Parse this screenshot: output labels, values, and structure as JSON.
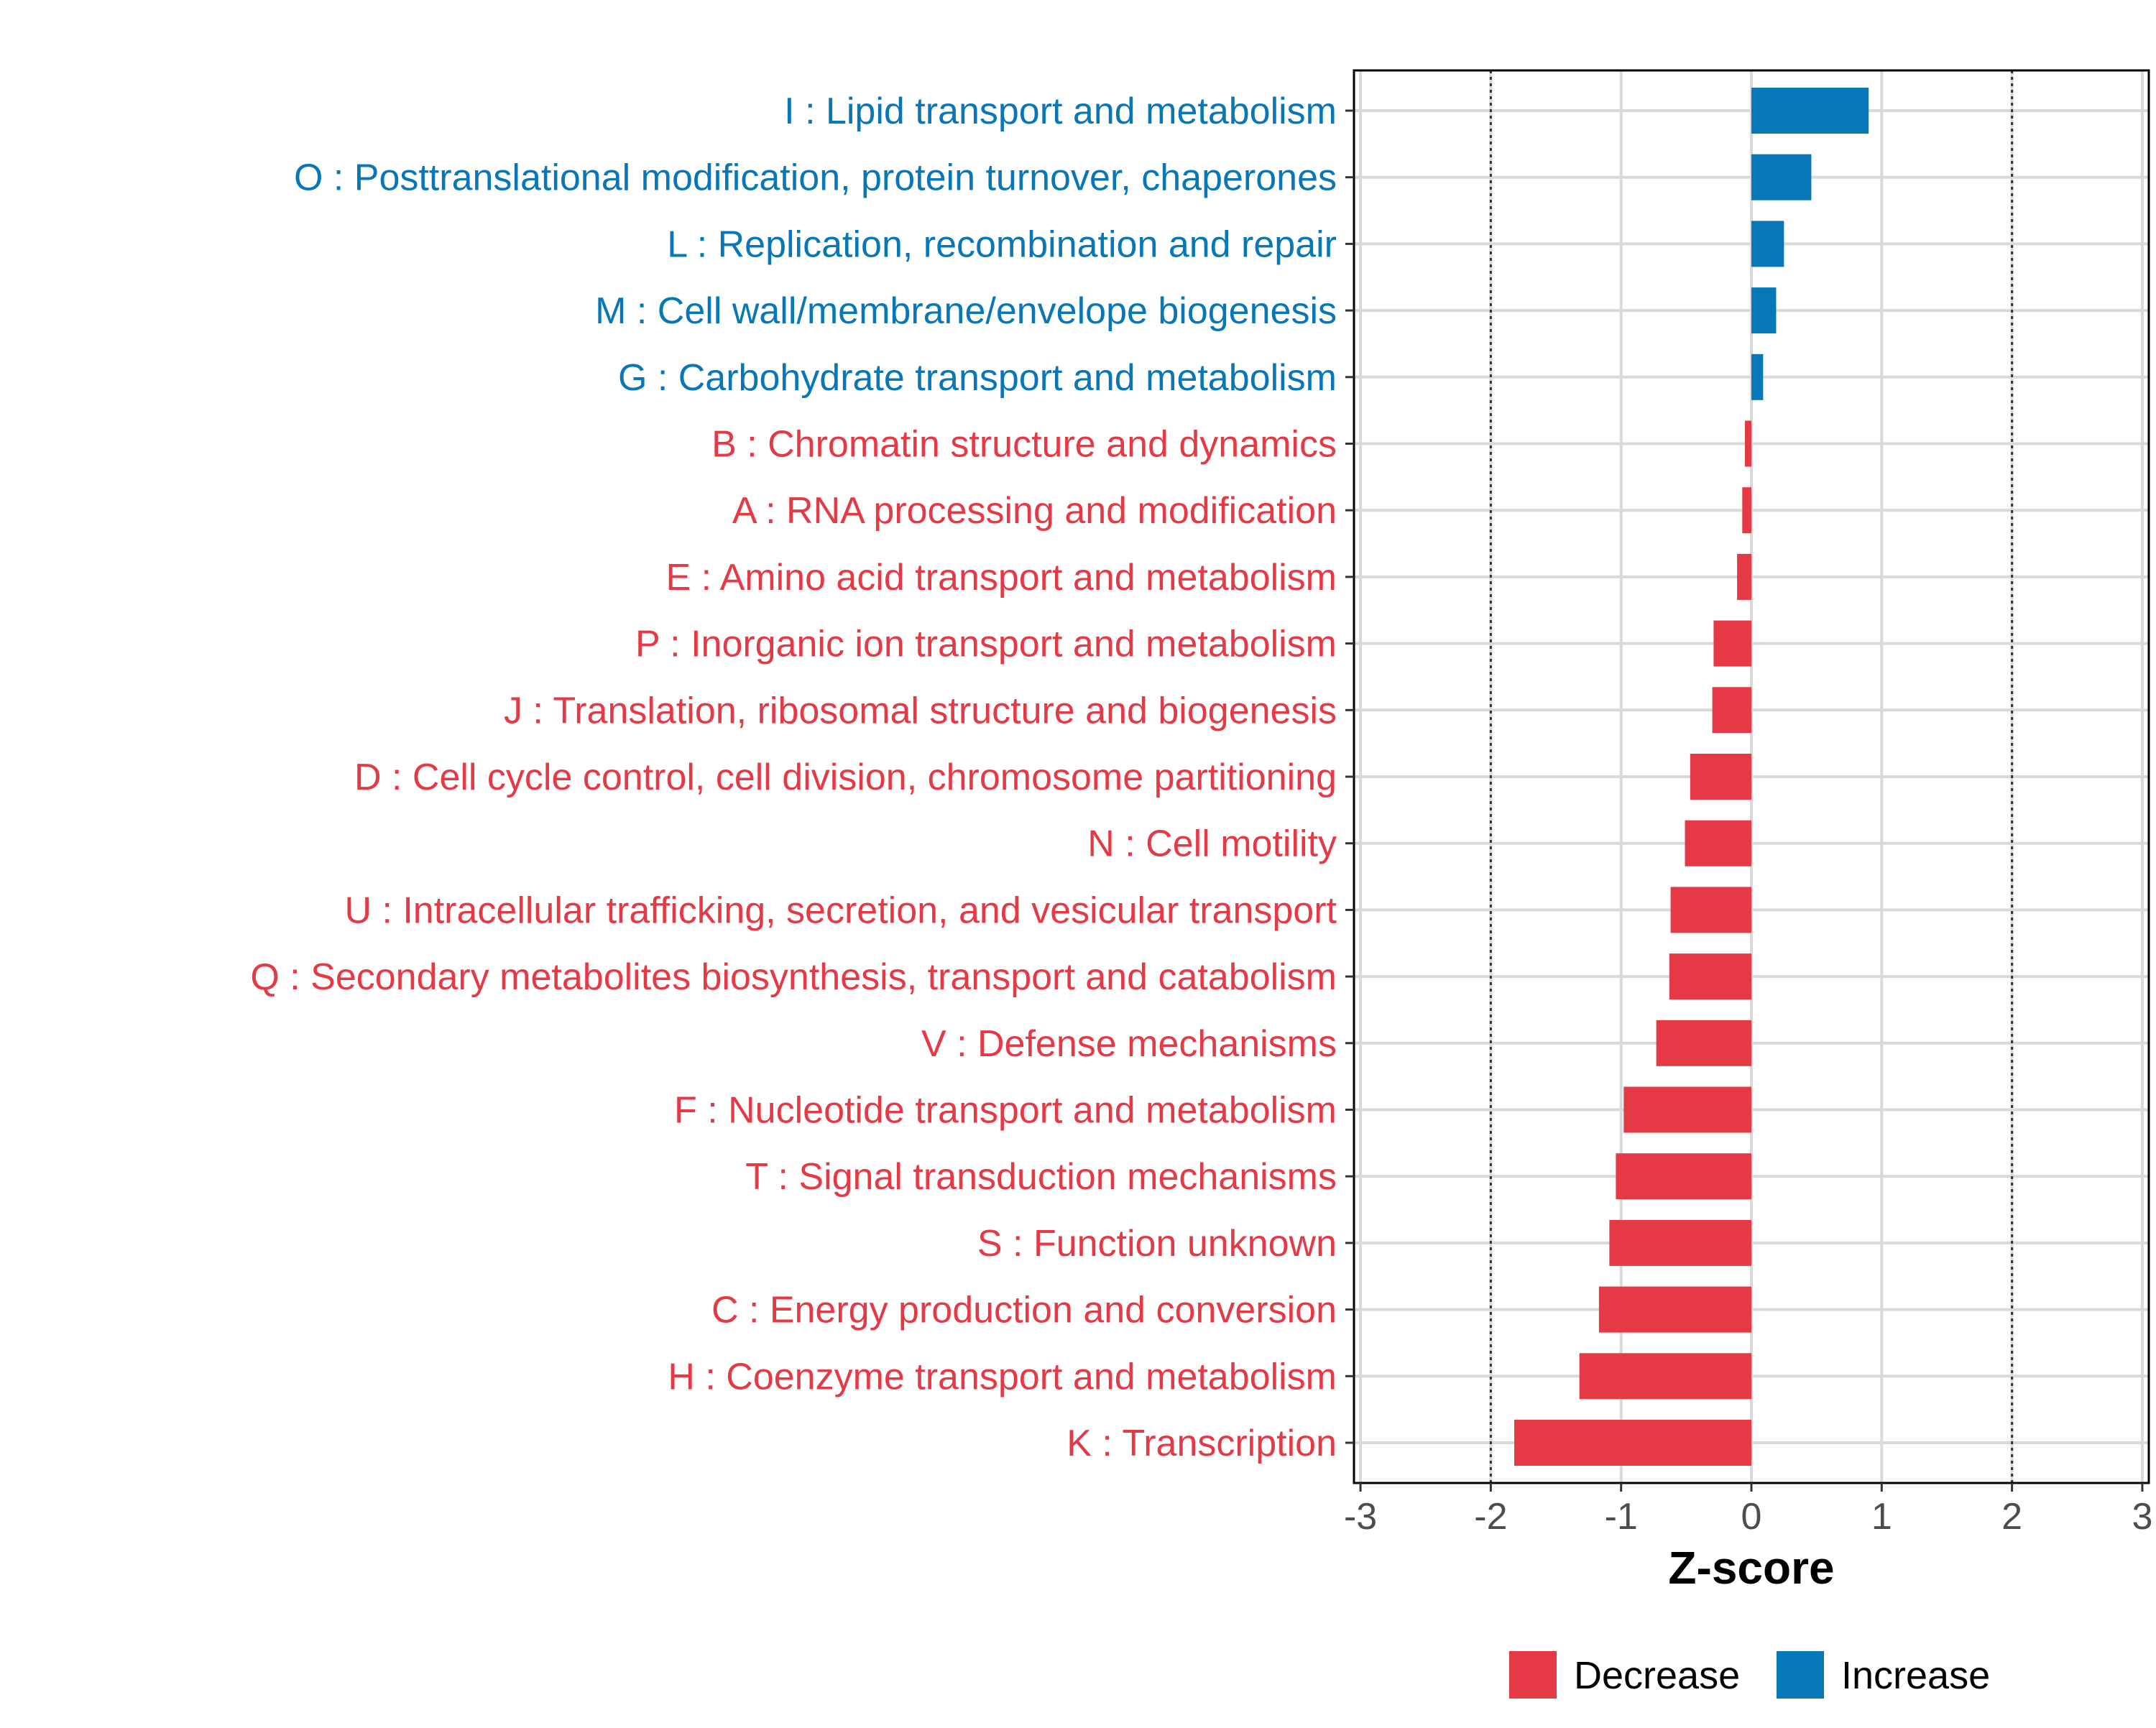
{
  "chart_data": {
    "type": "bar",
    "orientation": "horizontal",
    "xlabel": "Z-score",
    "xlim": [
      -3.05,
      3.05
    ],
    "xticks": [
      -3,
      -2,
      -1,
      0,
      1,
      2,
      3
    ],
    "xtick_labels": [
      "-3",
      "-2",
      "-1",
      "0",
      "1",
      "2",
      "3"
    ],
    "reference_lines": [
      -2,
      2
    ],
    "grid": true,
    "categories": [
      "I : Lipid transport and metabolism",
      "O : Posttranslational modification, protein turnover, chaperones",
      "L : Replication, recombination and repair",
      "M : Cell wall/membrane/envelope biogenesis",
      "G : Carbohydrate transport and metabolism",
      "B : Chromatin structure and dynamics",
      "A : RNA processing and modification",
      "E : Amino acid transport and metabolism",
      "P : Inorganic ion transport and metabolism",
      "J : Translation, ribosomal structure and biogenesis",
      "D : Cell cycle control, cell division, chromosome partitioning",
      "N : Cell motility",
      "U : Intracellular trafficking, secretion, and vesicular transport",
      "Q : Secondary metabolites biosynthesis, transport and catabolism",
      "V : Defense mechanisms",
      "F : Nucleotide transport and metabolism",
      "T : Signal transduction mechanisms",
      "S : Function unknown",
      "C : Energy production and conversion",
      "H : Coenzyme transport and metabolism",
      "K : Transcription"
    ],
    "values": [
      0.9,
      0.46,
      0.25,
      0.19,
      0.09,
      -0.05,
      -0.07,
      -0.11,
      -0.29,
      -0.3,
      -0.47,
      -0.51,
      -0.62,
      -0.63,
      -0.73,
      -0.98,
      -1.04,
      -1.09,
      -1.17,
      -1.32,
      -1.82
    ],
    "groups": [
      "Increase",
      "Increase",
      "Increase",
      "Increase",
      "Increase",
      "Decrease",
      "Decrease",
      "Decrease",
      "Decrease",
      "Decrease",
      "Decrease",
      "Decrease",
      "Decrease",
      "Decrease",
      "Decrease",
      "Decrease",
      "Decrease",
      "Decrease",
      "Decrease",
      "Decrease",
      "Decrease"
    ],
    "legend": {
      "position": "bottom",
      "items": [
        {
          "label": "Decrease",
          "color": "#e63946"
        },
        {
          "label": "Increase",
          "color": "#0877b8"
        }
      ]
    },
    "colors": {
      "Decrease": "#e63946",
      "Increase": "#0877b8"
    }
  }
}
